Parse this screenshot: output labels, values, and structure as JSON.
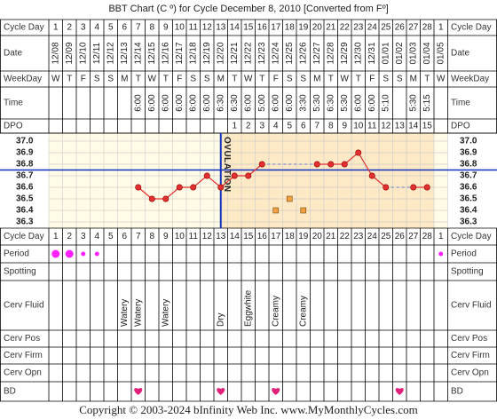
{
  "chart_data": {
    "type": "line",
    "title": "BBT Chart (C º) for Cycle December 8, 2010  [Converted from Fº]",
    "row_labels": {
      "cycle_day": "Cycle Day",
      "date": "Date",
      "weekday": "WeekDay",
      "time": "Time",
      "dpo": "DPO",
      "period": "Period",
      "spotting": "Spotting",
      "cerv_fluid": "Cerv Fluid",
      "cerv_pos": "Cerv Pos",
      "cerv_firm": "Cerv Firm",
      "cerv_opn": "Cerv Opn",
      "bd": "BD"
    },
    "cycle_days": [
      1,
      2,
      3,
      4,
      5,
      6,
      7,
      8,
      9,
      10,
      11,
      12,
      13,
      14,
      15,
      16,
      17,
      18,
      19,
      20,
      21,
      22,
      23,
      24,
      25,
      26,
      27,
      28,
      1
    ],
    "dates": [
      "12/08",
      "12/09",
      "12/10",
      "12/11",
      "12/12",
      "12/13",
      "12/14",
      "12/15",
      "12/16",
      "12/17",
      "12/18",
      "12/19",
      "12/20",
      "12/21",
      "12/22",
      "12/23",
      "12/24",
      "12/25",
      "12/26",
      "12/27",
      "12/28",
      "12/29",
      "12/30",
      "12/31",
      "01/01",
      "01/02",
      "01/03",
      "01/04",
      "01/05"
    ],
    "weekdays": [
      "W",
      "T",
      "F",
      "S",
      "S",
      "M",
      "T",
      "W",
      "T",
      "F",
      "S",
      "S",
      "M",
      "T",
      "W",
      "T",
      "F",
      "S",
      "S",
      "M",
      "T",
      "W",
      "T",
      "F",
      "S",
      "S",
      "M",
      "T",
      "W"
    ],
    "times": [
      null,
      null,
      null,
      null,
      null,
      null,
      "6:00",
      "6:00",
      "6:00",
      "6:00",
      "6:00",
      "6:00",
      "6:30",
      "6:30",
      "6:00",
      "5:00",
      "6:00",
      "6:00",
      "3:30",
      "5:30",
      "6:30",
      "5:30",
      "6:00",
      "6:00",
      "5:10",
      null,
      "5:30",
      "5:15",
      null
    ],
    "dpo": [
      null,
      null,
      null,
      null,
      null,
      null,
      null,
      null,
      null,
      null,
      null,
      null,
      null,
      1,
      2,
      3,
      4,
      5,
      6,
      7,
      8,
      9,
      10,
      11,
      12,
      13,
      14,
      15,
      null
    ],
    "series": [
      {
        "name": "BBT",
        "color": "#e03030",
        "values": [
          null,
          null,
          null,
          null,
          null,
          null,
          36.6,
          36.5,
          36.5,
          36.6,
          36.6,
          36.7,
          36.6,
          36.7,
          36.7,
          36.8,
          null,
          null,
          null,
          36.8,
          36.8,
          36.8,
          36.9,
          36.7,
          36.6,
          null,
          36.6,
          36.6,
          null
        ]
      }
    ],
    "excluded": {
      "color": "#f0a040",
      "values": [
        null,
        null,
        null,
        null,
        null,
        null,
        null,
        null,
        null,
        null,
        null,
        null,
        null,
        null,
        null,
        null,
        36.4,
        36.5,
        36.4,
        null,
        null,
        null,
        null,
        null,
        null,
        null,
        null,
        null,
        null
      ]
    },
    "coverline": 36.75,
    "ovulation": {
      "label": "OVULATION",
      "day": 13
    },
    "ylim": [
      36.25,
      37.05
    ],
    "yticks": [
      {
        "value": 37,
        "label": "37.0"
      },
      36.9,
      36.8,
      36.7,
      36.6,
      36.5,
      36.4,
      36.3
    ],
    "grid": true,
    "period": [
      "heavy",
      "heavy",
      "light",
      "light",
      null,
      null,
      null,
      null,
      null,
      null,
      null,
      null,
      null,
      null,
      null,
      null,
      null,
      null,
      null,
      null,
      null,
      null,
      null,
      null,
      null,
      null,
      null,
      null,
      "light"
    ],
    "cerv_fluid": [
      null,
      null,
      null,
      null,
      null,
      "Watery",
      "Watery",
      null,
      "Watery",
      null,
      null,
      null,
      "Dry",
      null,
      "Eggwhite",
      null,
      "Creamy",
      null,
      "Creamy",
      null,
      null,
      null,
      null,
      null,
      null,
      null,
      null,
      null,
      null
    ],
    "bd": [
      false,
      false,
      false,
      false,
      false,
      false,
      true,
      false,
      false,
      false,
      false,
      false,
      true,
      false,
      false,
      false,
      true,
      false,
      false,
      false,
      false,
      false,
      false,
      false,
      false,
      true,
      false,
      false,
      false
    ],
    "footer": "Copyright © 2003-2024 bInfinity Web Inc.    www.MyMonthlyCycles.com"
  }
}
